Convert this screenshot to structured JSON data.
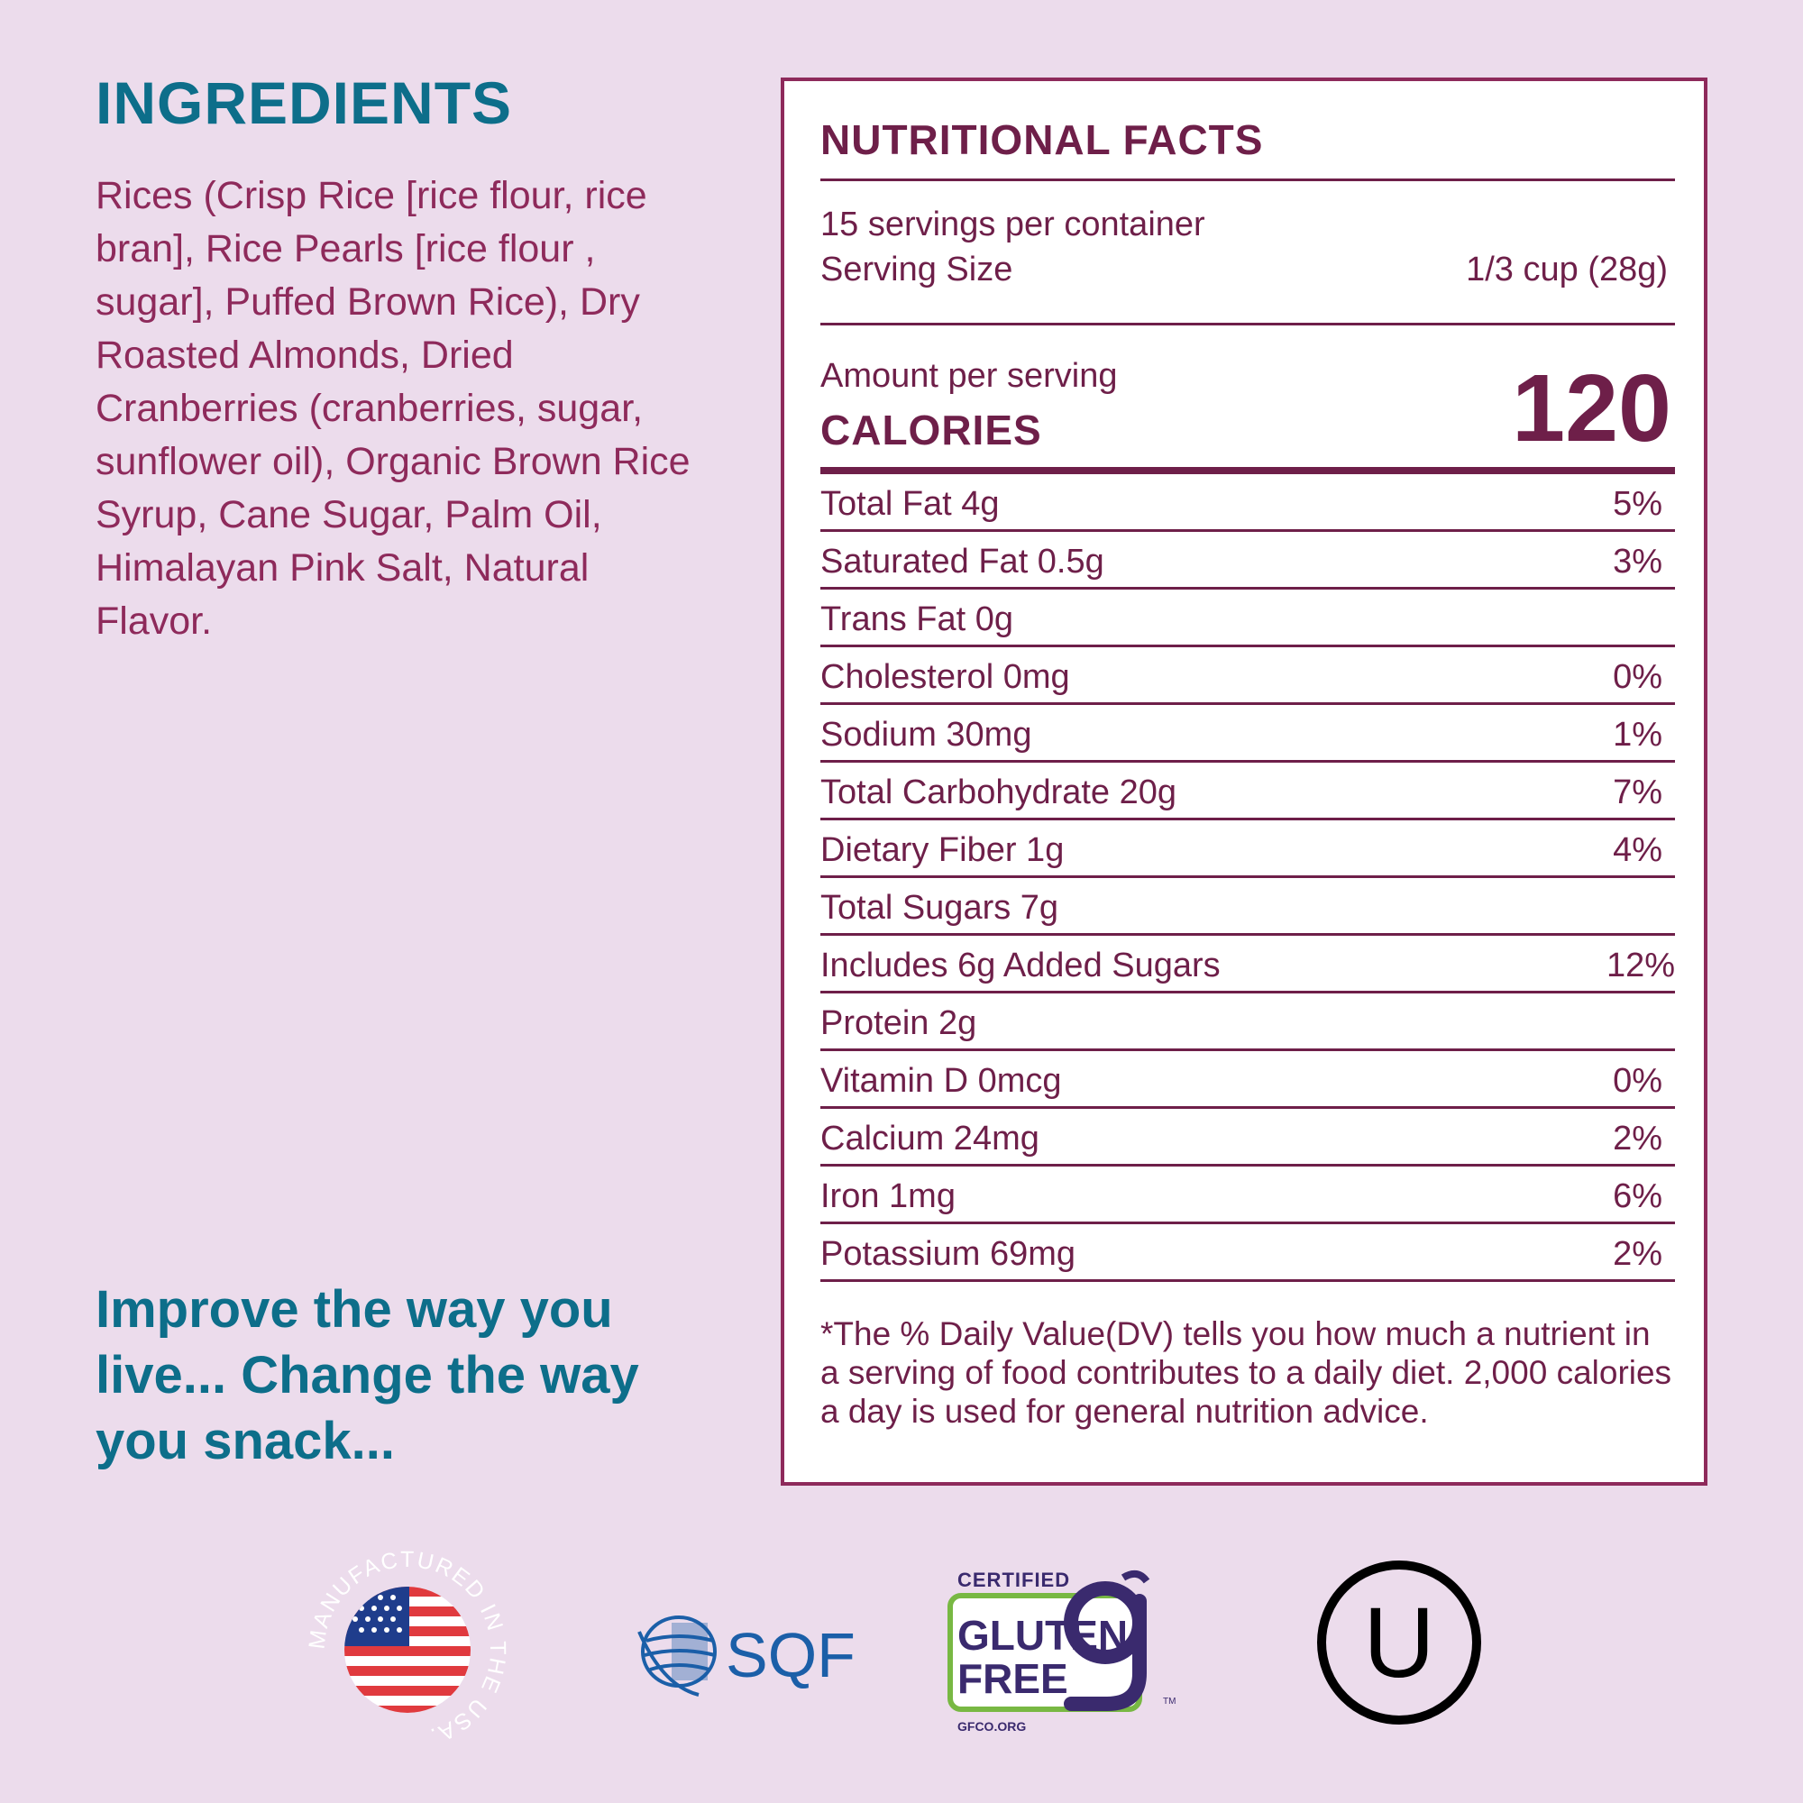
{
  "ingredients": {
    "title": "INGREDIENTS",
    "text": "Rices (Crisp Rice [rice flour, rice bran], Rice Pearls [rice flour , sugar], Puffed Brown Rice), Dry Roasted Almonds, Dried Cranberries (cranberries, sugar, sunflower oil), Organic Brown Rice Syrup, Cane Sugar, Palm Oil, Himalayan Pink Salt, Natural Flavor."
  },
  "slogan": "Improve the way you live... Change the way you snack...",
  "nutrition": {
    "title": "NUTRITIONAL FACTS",
    "servings_per_container": "15 servings per container",
    "serving_size_label": "Serving Size",
    "serving_size_value": "1/3 cup (28g)",
    "amount_per_serving": "Amount per serving",
    "calories_label": "CALORIES",
    "calories_value": "120",
    "rows": [
      {
        "name": "Total Fat 4g",
        "dv": "5%"
      },
      {
        "name": "Saturated Fat 0.5g",
        "dv": "3%"
      },
      {
        "name": "Trans Fat 0g",
        "dv": ""
      },
      {
        "name": "Cholesterol 0mg",
        "dv": "0%"
      },
      {
        "name": "Sodium 30mg",
        "dv": "1%"
      },
      {
        "name": "Total Carbohydrate 20g",
        "dv": "7%"
      },
      {
        "name": "Dietary Fiber 1g",
        "dv": "4%"
      },
      {
        "name": "Total Sugars 7g",
        "dv": ""
      },
      {
        "name": "Includes 6g Added Sugars",
        "dv": "12%"
      },
      {
        "name": "Protein 2g",
        "dv": ""
      },
      {
        "name": "Vitamin D 0mcg",
        "dv": "0%"
      },
      {
        "name": "Calcium 24mg",
        "dv": "2%"
      },
      {
        "name": "Iron 1mg",
        "dv": "6%"
      },
      {
        "name": "Potassium 69mg",
        "dv": "2%"
      }
    ],
    "footnote": "*The % Daily Value(DV) tells you how much a nutrient in a serving of food contributes to a daily diet. 2,000 calories a day is used for general nutrition advice."
  },
  "logos": {
    "usa": {
      "icon": "usa-flag-seal-icon",
      "ring_text": "MANUFACTURED IN THE USA."
    },
    "sqf": {
      "icon": "sqf-globe-icon",
      "text": "SQF"
    },
    "gluten_free": {
      "icon": "gluten-free-certified-icon",
      "certified": "CERTIFIED",
      "gluten": "GLUTEN",
      "free": "FREE",
      "site": "GFCO.ORG",
      "tm": "TM"
    },
    "kosher": {
      "icon": "kosher-ou-icon",
      "letter": "U"
    }
  },
  "colors": {
    "background": "#ecdcec",
    "teal": "#0d6e8a",
    "plum": "#6e1f49",
    "magenta": "#8e2a5b"
  }
}
